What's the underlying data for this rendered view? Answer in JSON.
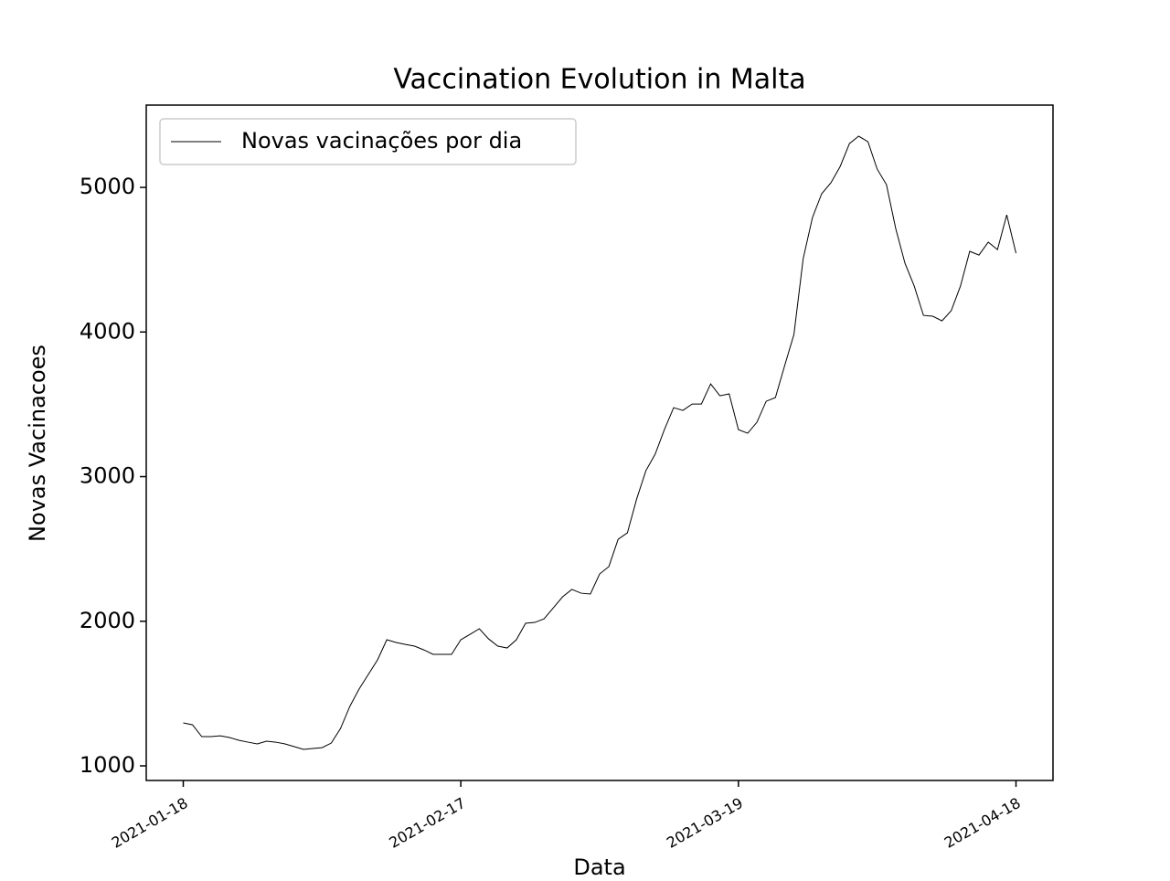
{
  "chart_data": {
    "type": "line",
    "title": "Vaccination Evolution in Malta",
    "xlabel": "Data",
    "ylabel": "Novas Vacinacoes",
    "x": [
      "2021-01-18",
      "2021-01-19",
      "2021-01-20",
      "2021-01-21",
      "2021-01-22",
      "2021-01-23",
      "2021-01-24",
      "2021-01-25",
      "2021-01-26",
      "2021-01-27",
      "2021-01-28",
      "2021-01-29",
      "2021-01-30",
      "2021-01-31",
      "2021-02-01",
      "2021-02-02",
      "2021-02-03",
      "2021-02-04",
      "2021-02-05",
      "2021-02-06",
      "2021-02-07",
      "2021-02-08",
      "2021-02-09",
      "2021-02-10",
      "2021-02-11",
      "2021-02-12",
      "2021-02-13",
      "2021-02-14",
      "2021-02-15",
      "2021-02-16",
      "2021-02-17",
      "2021-02-18",
      "2021-02-19",
      "2021-02-20",
      "2021-02-21",
      "2021-02-22",
      "2021-02-23",
      "2021-02-24",
      "2021-02-25",
      "2021-02-26",
      "2021-02-27",
      "2021-02-28",
      "2021-03-01",
      "2021-03-02",
      "2021-03-03",
      "2021-03-04",
      "2021-03-05",
      "2021-03-06",
      "2021-03-07",
      "2021-03-08",
      "2021-03-09",
      "2021-03-10",
      "2021-03-11",
      "2021-03-12",
      "2021-03-13",
      "2021-03-14",
      "2021-03-15",
      "2021-03-16",
      "2021-03-17",
      "2021-03-18",
      "2021-03-19",
      "2021-03-20",
      "2021-03-21",
      "2021-03-22",
      "2021-03-23",
      "2021-03-24",
      "2021-03-25",
      "2021-03-26",
      "2021-03-27",
      "2021-03-28",
      "2021-03-29",
      "2021-03-30",
      "2021-03-31",
      "2021-04-01",
      "2021-04-02",
      "2021-04-03",
      "2021-04-04",
      "2021-04-05",
      "2021-04-06",
      "2021-04-07",
      "2021-04-08",
      "2021-04-09",
      "2021-04-10",
      "2021-04-11",
      "2021-04-12",
      "2021-04-13",
      "2021-04-14",
      "2021-04-15",
      "2021-04-16",
      "2021-04-17",
      "2021-04-18"
    ],
    "series": [
      {
        "name": "Novas vacinações por dia",
        "color": "#000000",
        "values": [
          1297,
          1284,
          1202,
          1202,
          1208,
          1196,
          1177,
          1164,
          1152,
          1171,
          1164,
          1152,
          1133,
          1114,
          1120,
          1126,
          1158,
          1259,
          1411,
          1531,
          1632,
          1733,
          1872,
          1853,
          1840,
          1828,
          1802,
          1771,
          1771,
          1771,
          1872,
          1910,
          1948,
          1878,
          1828,
          1815,
          1872,
          1986,
          1992,
          2017,
          2093,
          2169,
          2220,
          2194,
          2188,
          2327,
          2378,
          2567,
          2611,
          2845,
          3041,
          3155,
          3325,
          3477,
          3458,
          3502,
          3502,
          3641,
          3559,
          3572,
          3325,
          3300,
          3376,
          3521,
          3547,
          3768,
          3983,
          4507,
          4791,
          4956,
          5032,
          5145,
          5303,
          5354,
          5316,
          5126,
          5019,
          4716,
          4476,
          4318,
          4115,
          4109,
          4077,
          4147,
          4318,
          4558,
          4532,
          4621,
          4570,
          4810,
          4545
        ]
      }
    ],
    "xlim": [
      "2021-01-14",
      "2021-04-22"
    ],
    "xticks": [
      "2021-01-18",
      "2021-02-17",
      "2021-03-19",
      "2021-04-18"
    ],
    "ylim": [
      899,
      5569
    ],
    "yticks": [
      1000,
      2000,
      3000,
      4000,
      5000
    ],
    "grid": false,
    "legend": "upper-left"
  }
}
